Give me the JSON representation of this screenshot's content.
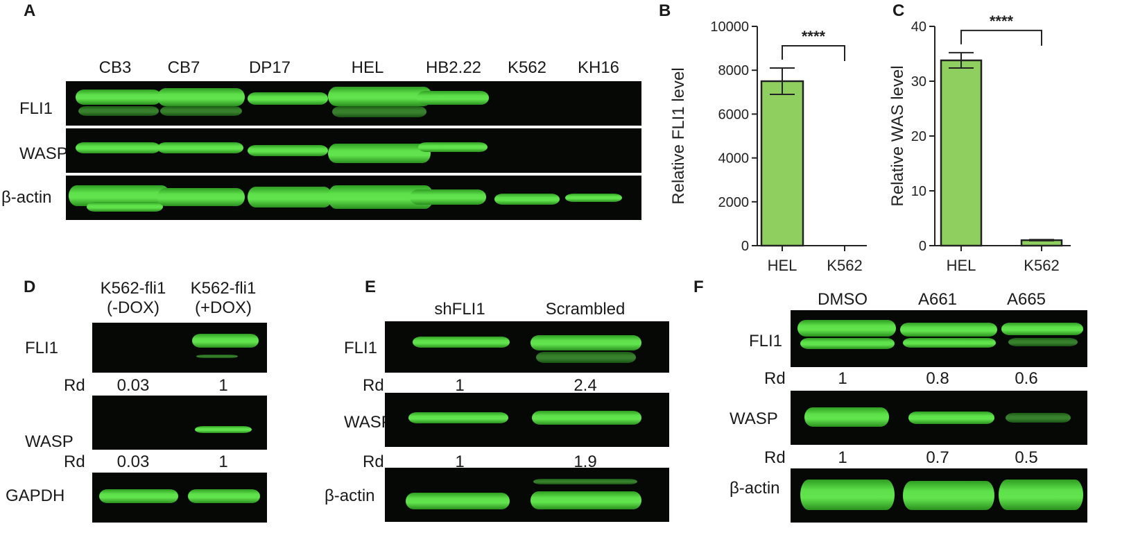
{
  "panelA": {
    "letter": "A",
    "lanes": [
      "CB3",
      "CB7",
      "DP17",
      "HEL",
      "HB2.22",
      "K562",
      "KH16"
    ],
    "rows": [
      "FLI1",
      "WASP",
      "β-actin"
    ]
  },
  "panelD": {
    "letter": "D",
    "lanes": [
      {
        "line1": "K562-fli1",
        "line2": "(-DOX)"
      },
      {
        "line1": "K562-fli1",
        "line2": "(+DOX)"
      }
    ],
    "rows": [
      "FLI1",
      "WASP",
      "GAPDH"
    ],
    "rd_label": "Rd",
    "rd_fli1": [
      "0.03",
      "1"
    ],
    "rd_wasp": [
      "0.03",
      "1"
    ]
  },
  "panelE": {
    "letter": "E",
    "lanes": [
      "shFLI1",
      "Scrambled"
    ],
    "rows": [
      "FLI1",
      "WASP",
      "β-actin"
    ],
    "rd_label": "Rd",
    "rd_fli1": [
      "1",
      "2.4"
    ],
    "rd_wasp": [
      "1",
      "1.9"
    ]
  },
  "panelF": {
    "letter": "F",
    "lanes": [
      "DMSO",
      "A661",
      "A665"
    ],
    "rows": [
      "FLI1",
      "WASP",
      "β-actin"
    ],
    "rd_label": "Rd",
    "rd_fli1": [
      "1",
      "0.8",
      "0.6"
    ],
    "rd_wasp": [
      "1",
      "0.7",
      "0.5"
    ]
  },
  "colors": {
    "bar": "#8fcf5f",
    "band": "#5ee04a",
    "blot": "#050805"
  },
  "chart_data": [
    {
      "panel": "B",
      "type": "bar",
      "categories": [
        "HEL",
        "K562"
      ],
      "values": [
        7500,
        0
      ],
      "errors": [
        600,
        0
      ],
      "ylabel": "Relative FLI1 level",
      "ylim": [
        0,
        10000
      ],
      "yticks": [
        "0",
        "2000",
        "4000",
        "6000",
        "8000",
        "10000"
      ],
      "significance": "****"
    },
    {
      "panel": "C",
      "type": "bar",
      "categories": [
        "HEL",
        "K562"
      ],
      "values": [
        33.8,
        1
      ],
      "errors": [
        1.4,
        0.1
      ],
      "ylabel": "Relative WAS level",
      "ylim": [
        0,
        40
      ],
      "yticks": [
        "0",
        "10",
        "20",
        "30",
        "40"
      ],
      "significance": "****"
    }
  ]
}
